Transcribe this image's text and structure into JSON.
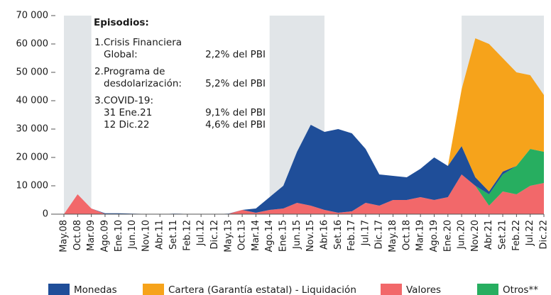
{
  "chart_data": {
    "type": "stacked_area",
    "categories": [
      "May.08",
      "Oct.08",
      "Mar.09",
      "Ago.09",
      "Ene.10",
      "Jun.10",
      "Nov.10",
      "Abr.11",
      "Set.11",
      "Feb.12",
      "Jul.12",
      "Dic.12",
      "May.13",
      "Oct.13",
      "Mar.14",
      "Ago.14",
      "Ene.15",
      "Jun.15",
      "Nov.15",
      "Abr.16",
      "Set.16",
      "Feb.17",
      "Jul.17",
      "Dic.17",
      "May.18",
      "Oct.18",
      "Mar.19",
      "Ago.19",
      "Ene.20",
      "Jun.20",
      "Nov.20",
      "Abr.21",
      "Set.21",
      "Feb.22",
      "Jul.22",
      "Dic.22"
    ],
    "series": [
      {
        "name": "Monedas",
        "color": "#1f4e99",
        "values": [
          0,
          0,
          0,
          200,
          200,
          100,
          100,
          0,
          100,
          0,
          0,
          0,
          100,
          0,
          1500,
          4500,
          8000,
          18000,
          28500,
          27500,
          29500,
          27500,
          19000,
          11000,
          8500,
          8000,
          10000,
          15000,
          11000,
          10000,
          3000,
          1000,
          1000,
          0,
          0,
          0
        ]
      },
      {
        "name": "Cartera (Garantía estatal) - Liquidación",
        "color": "#f6a31b",
        "values": [
          0,
          0,
          0,
          0,
          0,
          0,
          0,
          0,
          0,
          0,
          0,
          0,
          0,
          0,
          0,
          0,
          0,
          0,
          0,
          0,
          0,
          0,
          0,
          0,
          0,
          0,
          0,
          0,
          0,
          20000,
          49000,
          52000,
          40000,
          33000,
          26000,
          20000
        ]
      },
      {
        "name": "Valores",
        "color": "#f2686a",
        "values": [
          0,
          7000,
          2000,
          100,
          100,
          100,
          0,
          0,
          100,
          100,
          100,
          0,
          100,
          1500,
          500,
          1500,
          2000,
          4000,
          3000,
          1500,
          500,
          1000,
          4000,
          3000,
          5000,
          5000,
          6000,
          5000,
          6000,
          14000,
          10000,
          3000,
          8000,
          7000,
          10000,
          11000
        ]
      },
      {
        "name": "Otros**",
        "color": "#27ae60",
        "values": [
          0,
          0,
          0,
          0,
          0,
          0,
          0,
          0,
          0,
          0,
          0,
          0,
          0,
          0,
          0,
          0,
          0,
          0,
          0,
          0,
          0,
          0,
          0,
          0,
          0,
          0,
          0,
          0,
          0,
          0,
          0,
          4000,
          6000,
          10000,
          13000,
          11000
        ]
      }
    ],
    "ylim": [
      0,
      70000
    ],
    "yticks": [
      0,
      {
        "value": 10000,
        "label": "10 000"
      },
      {
        "value": 20000,
        "label": "20 000"
      },
      {
        "value": 30000,
        "label": "30 000"
      },
      {
        "value": 40000,
        "label": "40 000"
      },
      {
        "value": 50000,
        "label": "50 000"
      },
      {
        "value": 60000,
        "label": "60 000"
      },
      {
        "value": 70000,
        "label": "70 000"
      }
    ],
    "shaded": [
      [
        "May.08",
        "Mar.09"
      ],
      [
        "Ago.14",
        "Abr.16"
      ],
      [
        "Jun.20",
        "Dic.22"
      ]
    ],
    "annotation": {
      "title": "Episodios:",
      "items": [
        {
          "num": "1.",
          "lines": [
            "Crisis Financiera",
            "Global:"
          ],
          "value": "2,2% del PBI"
        },
        {
          "num": "2.",
          "lines": [
            "Programa de",
            "desdolarización:"
          ],
          "value": "5,2% del PBI"
        },
        {
          "num": "3.",
          "lines": [
            "COVID-19:",
            "31 Ene.21",
            "12 Dic.22"
          ],
          "values": [
            "9,1% del PBI",
            "4,6% del PBI"
          ]
        }
      ]
    }
  }
}
